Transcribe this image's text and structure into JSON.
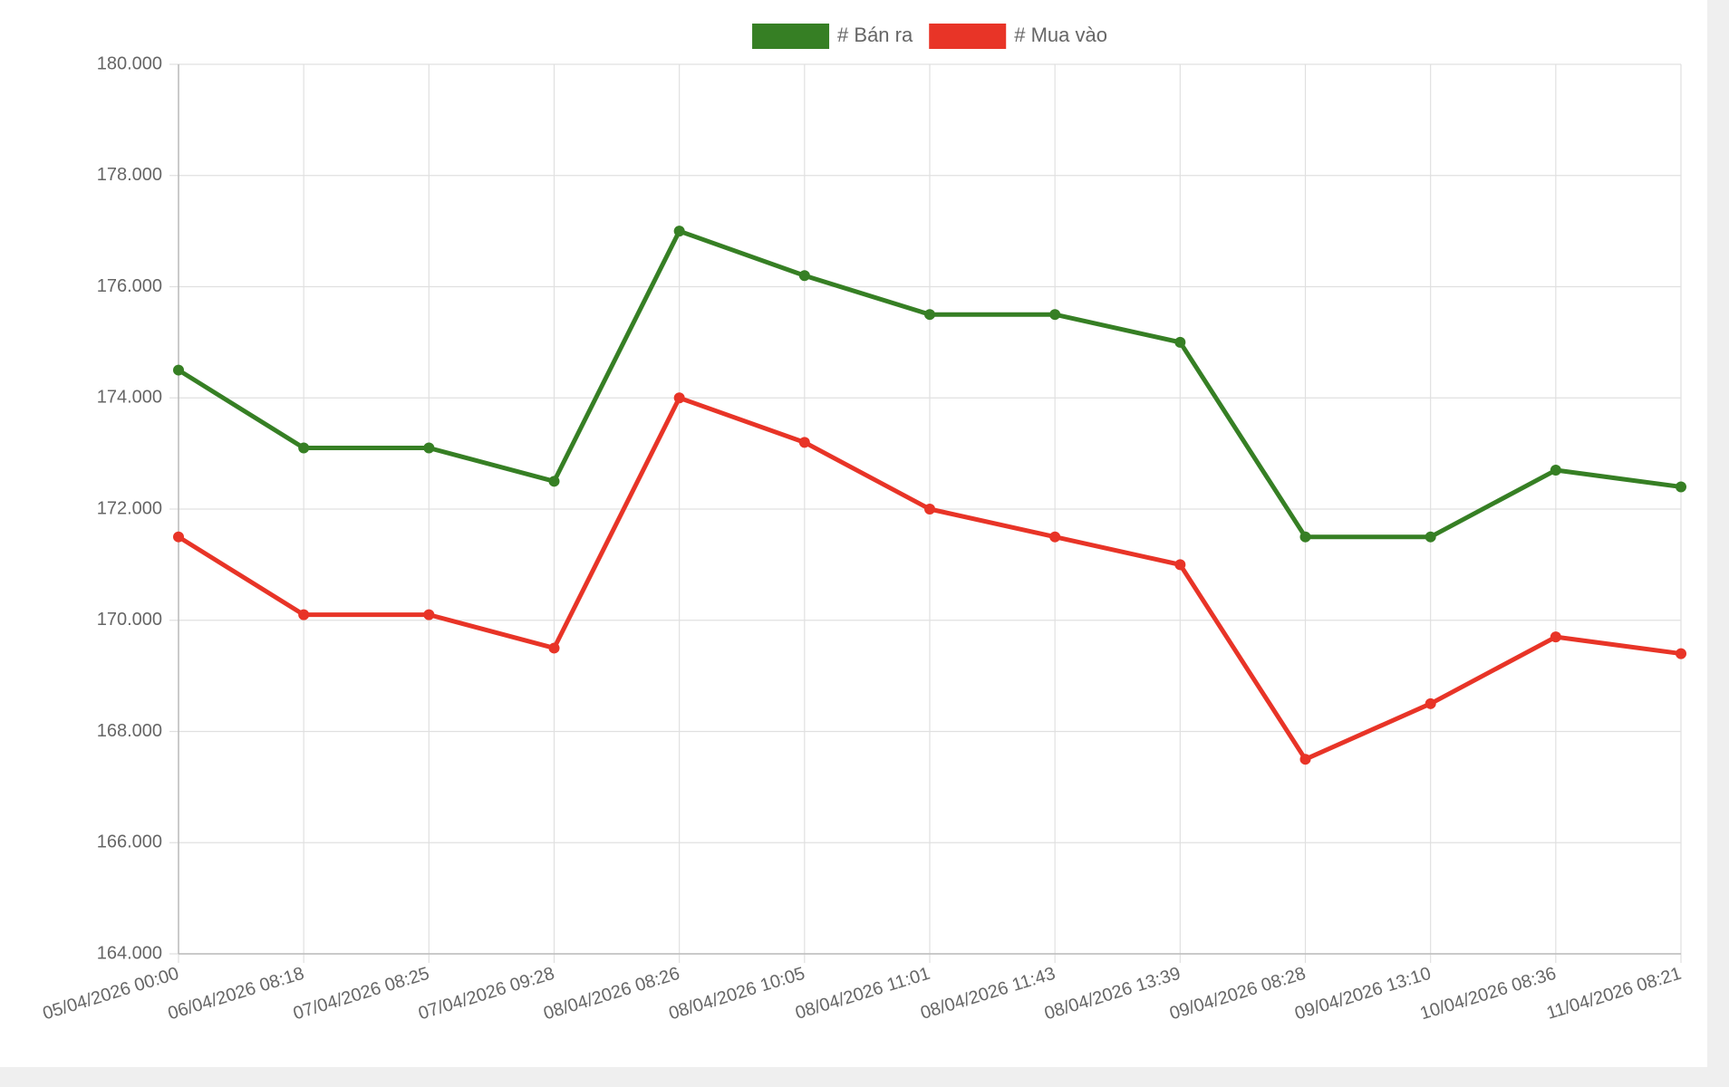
{
  "chart_data": {
    "type": "line",
    "categories": [
      "05/04/2026 00:00",
      "06/04/2026 08:18",
      "07/04/2026 08:25",
      "07/04/2026 09:28",
      "08/04/2026 08:26",
      "08/04/2026 10:05",
      "08/04/2026 11:01",
      "08/04/2026 11:43",
      "08/04/2026 13:39",
      "09/04/2026 08:28",
      "09/04/2026 13:10",
      "10/04/2026 08:36",
      "11/04/2026 08:21"
    ],
    "series": [
      {
        "name": "# Bán ra",
        "color": "#367f24",
        "values": [
          174500,
          173100,
          173100,
          172500,
          177000,
          176200,
          175500,
          175500,
          175000,
          171500,
          171500,
          172700,
          172400
        ]
      },
      {
        "name": "# Mua vào",
        "color": "#e83427",
        "values": [
          171500,
          170100,
          170100,
          169500,
          174000,
          173200,
          172000,
          171500,
          171000,
          167500,
          168500,
          169700,
          169400
        ]
      }
    ],
    "ylim": [
      164000,
      180000
    ],
    "yticks": [
      {
        "value": 164000,
        "label": "164.000"
      },
      {
        "value": 166000,
        "label": "166.000"
      },
      {
        "value": 168000,
        "label": "168.000"
      },
      {
        "value": 170000,
        "label": "170.000"
      },
      {
        "value": 172000,
        "label": "172.000"
      },
      {
        "value": 174000,
        "label": "174.000"
      },
      {
        "value": 176000,
        "label": "176.000"
      },
      {
        "value": 178000,
        "label": "178.000"
      },
      {
        "value": 180000,
        "label": "180.000"
      }
    ],
    "grid": true,
    "legend": "top"
  }
}
